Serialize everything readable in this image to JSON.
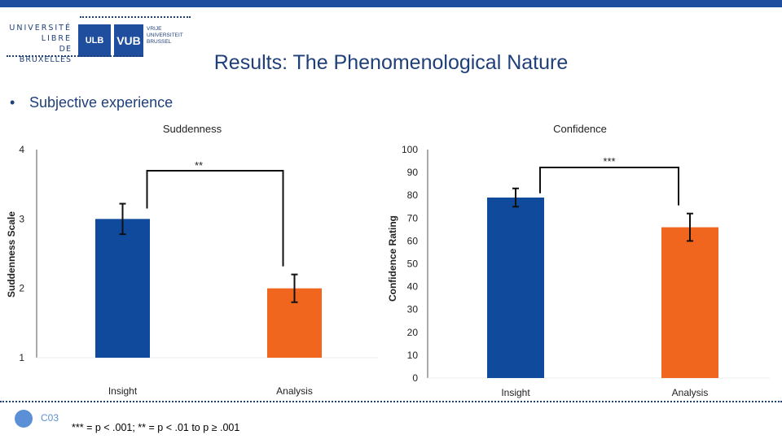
{
  "header": {
    "logo": {
      "ulb_lines": [
        "UNIVERSITÉ",
        "LIBRE",
        "DE BRUXELLES"
      ],
      "ulb_mark": "ULB",
      "vub_mark": "VUB",
      "vub_lines": [
        "VRIJE",
        "UNIVERSITEIT",
        "BRUSSEL"
      ]
    },
    "title": "Results: The Phenomenological Nature"
  },
  "bullet": {
    "symbol": "•",
    "text": "Subjective experience"
  },
  "footer": {
    "code": "C03",
    "note": "*** = p < .001; ** = p < .01 to p ≥ .001"
  },
  "colors": {
    "insight": "#0f4a9c",
    "analysis": "#f0661f",
    "brand": "#1f4e9e"
  },
  "chart_data": [
    {
      "type": "bar",
      "title": "Suddenness",
      "ylabel": "Suddenness Scale",
      "xlabel": "",
      "categories": [
        "Insight",
        "Analysis"
      ],
      "values": [
        3.0,
        2.0
      ],
      "error": [
        0.22,
        0.2
      ],
      "ylim": [
        1,
        4
      ],
      "yticks": [
        "1",
        "2",
        "3",
        "4"
      ],
      "significance": "**",
      "grid": false
    },
    {
      "type": "bar",
      "title": "Confidence",
      "ylabel": "Confidence Rating",
      "xlabel": "",
      "categories": [
        "Insight",
        "Analysis"
      ],
      "values": [
        79,
        66
      ],
      "error": [
        4,
        6
      ],
      "ylim": [
        0,
        100
      ],
      "yticks": [
        "0",
        "10",
        "20",
        "30",
        "40",
        "50",
        "60",
        "70",
        "80",
        "90",
        "100"
      ],
      "significance": "***",
      "grid": false
    }
  ]
}
